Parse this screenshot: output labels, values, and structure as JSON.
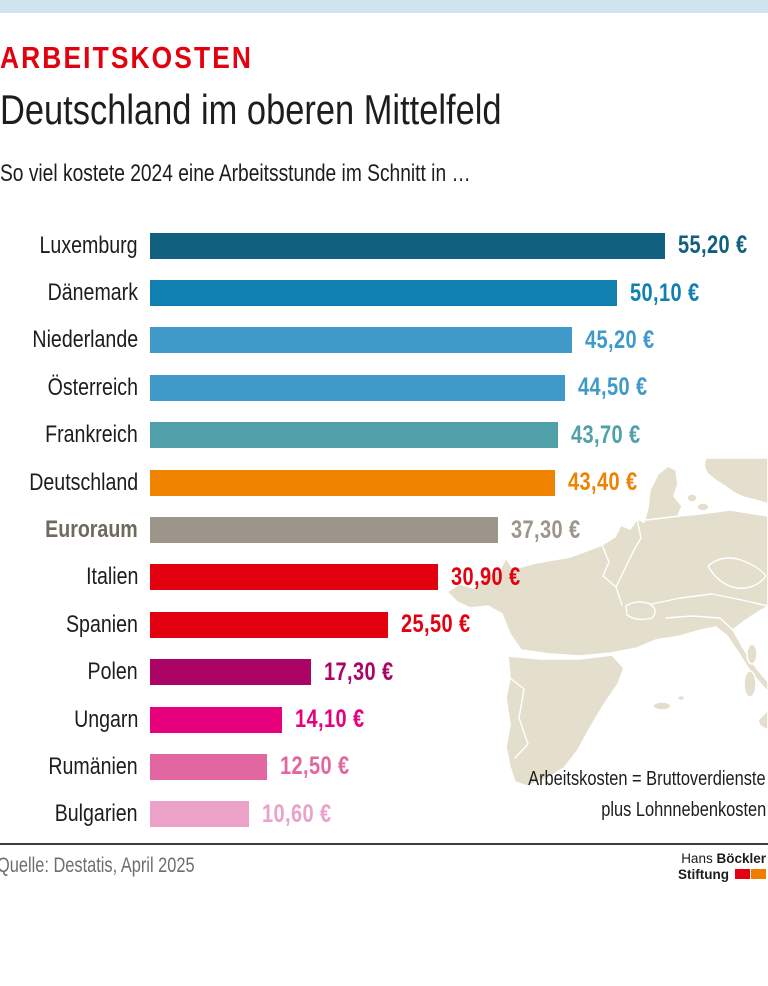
{
  "theme": {
    "top_bar": "#cfe4ee",
    "kicker_red": "#e3000f",
    "map_fill": "#e4decc",
    "label_color": "#1d1d1b",
    "emphasized_label_color": "#6f6a60"
  },
  "header": {
    "kicker": "ARBEITSKOSTEN",
    "title": "Deutschland im oberen Mittelfeld",
    "subtitle": "So viel kostete 2024 eine Arbeitsstunde im Schnitt in …"
  },
  "chart_data": {
    "type": "bar",
    "orientation": "horizontal",
    "title": "Deutschland im oberen Mittelfeld",
    "subtitle": "So viel kostete 2024 eine Arbeitsstunde im Schnitt in …",
    "unit": "EUR per working hour, 2024",
    "categories": [
      "Luxemburg",
      "Dänemark",
      "Niederlande",
      "Österreich",
      "Frankreich",
      "Deutschland",
      "Euroraum",
      "Italien",
      "Spanien",
      "Polen",
      "Ungarn",
      "Rumänien",
      "Bulgarien"
    ],
    "values": [
      55.2,
      50.1,
      45.2,
      44.5,
      43.7,
      43.4,
      37.3,
      30.9,
      25.5,
      17.3,
      14.1,
      12.5,
      10.6
    ],
    "value_labels": [
      "55,20 €",
      "50,10 €",
      "45,20 €",
      "44,50 €",
      "43,70 €",
      "43,40 €",
      "37,30 €",
      "30,90 €",
      "25,50 €",
      "17,30 €",
      "14,10 €",
      "12,50 €",
      "10,60 €"
    ],
    "bar_colors": [
      "#11607f",
      "#0f80b0",
      "#3f9aca",
      "#3f9aca",
      "#4fa0a8",
      "#ef8300",
      "#9b958a",
      "#e3000f",
      "#e3000f",
      "#ab0466",
      "#e6007e",
      "#e2669f",
      "#eba1c8"
    ],
    "emphasized_category": "Euroraum",
    "xlim": [
      0,
      59
    ],
    "grid": false,
    "legend": false,
    "annotation": [
      "Arbeitskosten = Bruttoverdienste",
      "plus Lohnnebenkosten"
    ]
  },
  "footer": {
    "source": "Quelle: Destatis, April 2025",
    "logo": {
      "line1_regular": "Hans",
      "line1_bold": "Böckler",
      "line2_bold": "Stiftung",
      "mark_colors": [
        "#e3000f",
        "#f07d00"
      ]
    }
  }
}
